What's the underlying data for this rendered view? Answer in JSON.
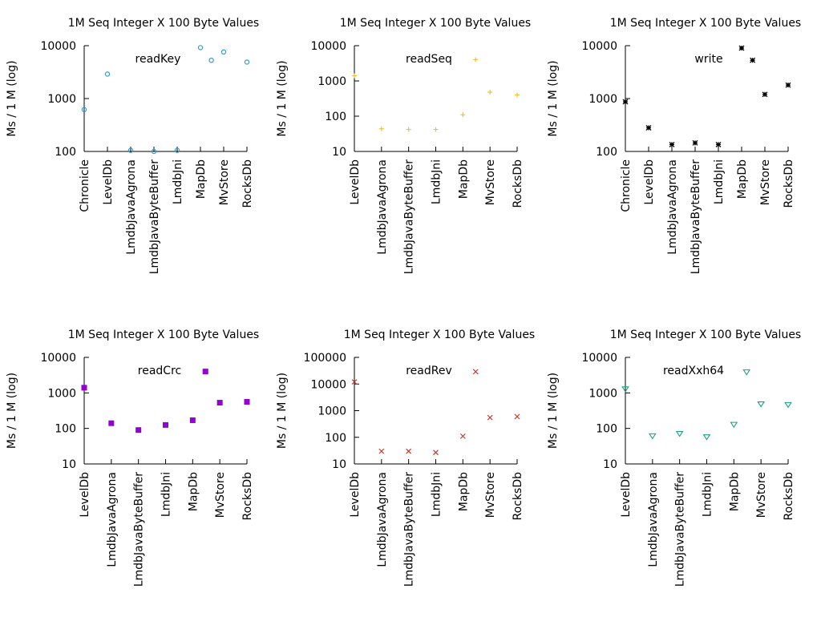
{
  "chart_data": [
    {
      "type": "scatter",
      "title": "1M Seq Integer X 100 Byte Values",
      "ylabel": "Ms / 1 M (log)",
      "yscale": "log",
      "ylim": [
        100,
        10000
      ],
      "yticks": [
        "100",
        "1000",
        "10000"
      ],
      "legend": "readKey",
      "marker": "circle",
      "color": "#2f9bd1",
      "categories": [
        "Chronicle",
        "LevelDb",
        "LmdbJavaAgrona",
        "LmdbJavaByteBuffer",
        "LmdbJni",
        "MapDb",
        "MvStore",
        "RocksDb"
      ],
      "points": [
        {
          "x": "Chronicle",
          "y": 620
        },
        {
          "x": "LevelDb",
          "y": 2900
        },
        {
          "x": "LmdbJavaAgrona",
          "y": 105
        },
        {
          "x": "LmdbJavaByteBuffer",
          "y": 100
        },
        {
          "x": "LmdbJni",
          "y": 105
        },
        {
          "x": "MapDb",
          "y": 9200
        },
        {
          "x": "MapDb",
          "y": 5300
        },
        {
          "x": "MvStore",
          "y": 7600
        },
        {
          "x": "RocksDb",
          "y": 4900
        }
      ]
    },
    {
      "type": "scatter",
      "title": "1M Seq Integer X 100 Byte Values",
      "ylabel": "Ms / 1 M (log)",
      "yscale": "log",
      "ylim": [
        10,
        10000
      ],
      "yticks": [
        "10",
        "100",
        "1000",
        "10000"
      ],
      "legend": "readSeq",
      "marker": "plus",
      "color": "#f2c12e",
      "categories": [
        "LevelDb",
        "LmdbJavaAgrona",
        "LmdbJavaByteBuffer",
        "LmdbJni",
        "MapDb",
        "MvStore",
        "RocksDb"
      ],
      "points": [
        {
          "x": "LevelDb",
          "y": 1400
        },
        {
          "x": "LmdbJavaAgrona",
          "y": 44
        },
        {
          "x": "LmdbJavaByteBuffer",
          "y": 42
        },
        {
          "x": "LmdbJni",
          "y": 42
        },
        {
          "x": "MapDb",
          "y": 110
        },
        {
          "x": "MapDb",
          "y": 4000
        },
        {
          "x": "MvStore",
          "y": 480
        },
        {
          "x": "RocksDb",
          "y": 400
        }
      ]
    },
    {
      "type": "scatter",
      "title": "1M Seq Integer X 100 Byte Values",
      "ylabel": "Ms / 1 M (log)",
      "yscale": "log",
      "ylim": [
        100,
        10000
      ],
      "yticks": [
        "100",
        "1000",
        "10000"
      ],
      "legend": "write",
      "marker": "star",
      "color": "#000000",
      "categories": [
        "Chronicle",
        "LevelDb",
        "LmdbJavaAgrona",
        "LmdbJavaByteBuffer",
        "LmdbJni",
        "MapDb",
        "MvStore",
        "RocksDb"
      ],
      "points": [
        {
          "x": "Chronicle",
          "y": 870
        },
        {
          "x": "LevelDb",
          "y": 280
        },
        {
          "x": "LmdbJavaAgrona",
          "y": 135
        },
        {
          "x": "LmdbJavaByteBuffer",
          "y": 145
        },
        {
          "x": "LmdbJni",
          "y": 135
        },
        {
          "x": "MapDb",
          "y": 9000
        },
        {
          "x": "MapDb",
          "y": 5300
        },
        {
          "x": "MvStore",
          "y": 1200
        },
        {
          "x": "RocksDb",
          "y": 1800
        }
      ]
    },
    {
      "type": "scatter",
      "title": "1M Seq Integer X 100 Byte Values",
      "ylabel": "Ms / 1 M (log)",
      "yscale": "log",
      "ylim": [
        10,
        10000
      ],
      "yticks": [
        "10",
        "100",
        "1000",
        "10000"
      ],
      "legend": "readCrc",
      "marker": "square",
      "color": "#9400d3",
      "categories": [
        "LevelDb",
        "LmdbJavaAgrona",
        "LmdbJavaByteBuffer",
        "LmdbJni",
        "MapDb",
        "MvStore",
        "RocksDb"
      ],
      "points": [
        {
          "x": "LevelDb",
          "y": 1400
        },
        {
          "x": "LmdbJavaAgrona",
          "y": 140
        },
        {
          "x": "LmdbJavaByteBuffer",
          "y": 90
        },
        {
          "x": "LmdbJni",
          "y": 125
        },
        {
          "x": "MapDb",
          "y": 170
        },
        {
          "x": "MapDb",
          "y": 4000
        },
        {
          "x": "MvStore",
          "y": 530
        },
        {
          "x": "RocksDb",
          "y": 560
        }
      ]
    },
    {
      "type": "scatter",
      "title": "1M Seq Integer X 100 Byte Values",
      "ylabel": "Ms / 1 M (log)",
      "yscale": "log",
      "ylim": [
        10,
        100000
      ],
      "yticks": [
        "10",
        "100",
        "1000",
        "10000",
        "100000"
      ],
      "legend": "readRev",
      "marker": "cross",
      "color": "#c7342b",
      "categories": [
        "LevelDb",
        "LmdbJavaAgrona",
        "LmdbJavaByteBuffer",
        "LmdbJni",
        "MapDb",
        "MvStore",
        "RocksDb"
      ],
      "points": [
        {
          "x": "LevelDb",
          "y": 12000
        },
        {
          "x": "LmdbJavaAgrona",
          "y": 30
        },
        {
          "x": "LmdbJavaByteBuffer",
          "y": 30
        },
        {
          "x": "LmdbJni",
          "y": 27
        },
        {
          "x": "MapDb",
          "y": 110
        },
        {
          "x": "MapDb",
          "y": 29000
        },
        {
          "x": "MvStore",
          "y": 550
        },
        {
          "x": "RocksDb",
          "y": 600
        }
      ]
    },
    {
      "type": "scatter",
      "title": "1M Seq Integer X 100 Byte Values",
      "ylabel": "Ms / 1 M (log)",
      "yscale": "log",
      "ylim": [
        10,
        10000
      ],
      "yticks": [
        "10",
        "100",
        "1000",
        "10000"
      ],
      "legend": "readXxh64",
      "marker": "triangle-down",
      "color": "#1a9e82",
      "categories": [
        "LevelDb",
        "LmdbJavaAgrona",
        "LmdbJavaByteBuffer",
        "LmdbJni",
        "MapDb",
        "MvStore",
        "RocksDb"
      ],
      "points": [
        {
          "x": "LevelDb",
          "y": 1300
        },
        {
          "x": "LmdbJavaAgrona",
          "y": 62
        },
        {
          "x": "LmdbJavaByteBuffer",
          "y": 72
        },
        {
          "x": "LmdbJni",
          "y": 58
        },
        {
          "x": "MapDb",
          "y": 130
        },
        {
          "x": "MapDb",
          "y": 3900
        },
        {
          "x": "MvStore",
          "y": 490
        },
        {
          "x": "RocksDb",
          "y": 470
        }
      ]
    }
  ]
}
